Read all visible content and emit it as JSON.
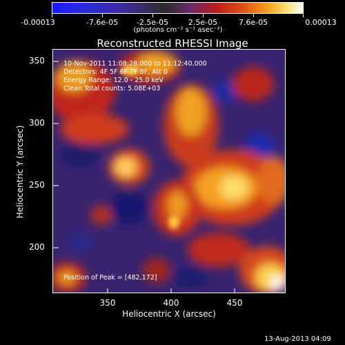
{
  "colorbar": {
    "tick_labels": [
      "-0.00013",
      "-7.6e-05",
      "-2.5e-05",
      "2.5e-05",
      "7.6e-05",
      "0.00013"
    ],
    "units": "(photons cm⁻² s⁻¹ asec⁻²)"
  },
  "title": "Reconstructed RHESSI Image",
  "annotations": {
    "time_range": "10-Nov-2011 11:08:28.000 to 11:12:40.000",
    "detectors": "Detectors: 4F 5F 6F 7F 8F, Att 0",
    "energy_range": "Energy Range: 12.0 - 25.0 keV",
    "clean_counts": "Clean    Total counts: 5.08E+03",
    "peak_position": "Position of Peak = [482,172]"
  },
  "axes": {
    "xlabel": "Heliocentric X (arcsec)",
    "ylabel": "Heliocentric Y (arcsec)",
    "xticks": [
      "350",
      "400",
      "450"
    ],
    "yticks": [
      "350",
      "300",
      "250",
      "200"
    ]
  },
  "datestamp": "13-Aug-2013 04:09",
  "colors": {
    "background": "#000000",
    "text": "#ffffff"
  }
}
